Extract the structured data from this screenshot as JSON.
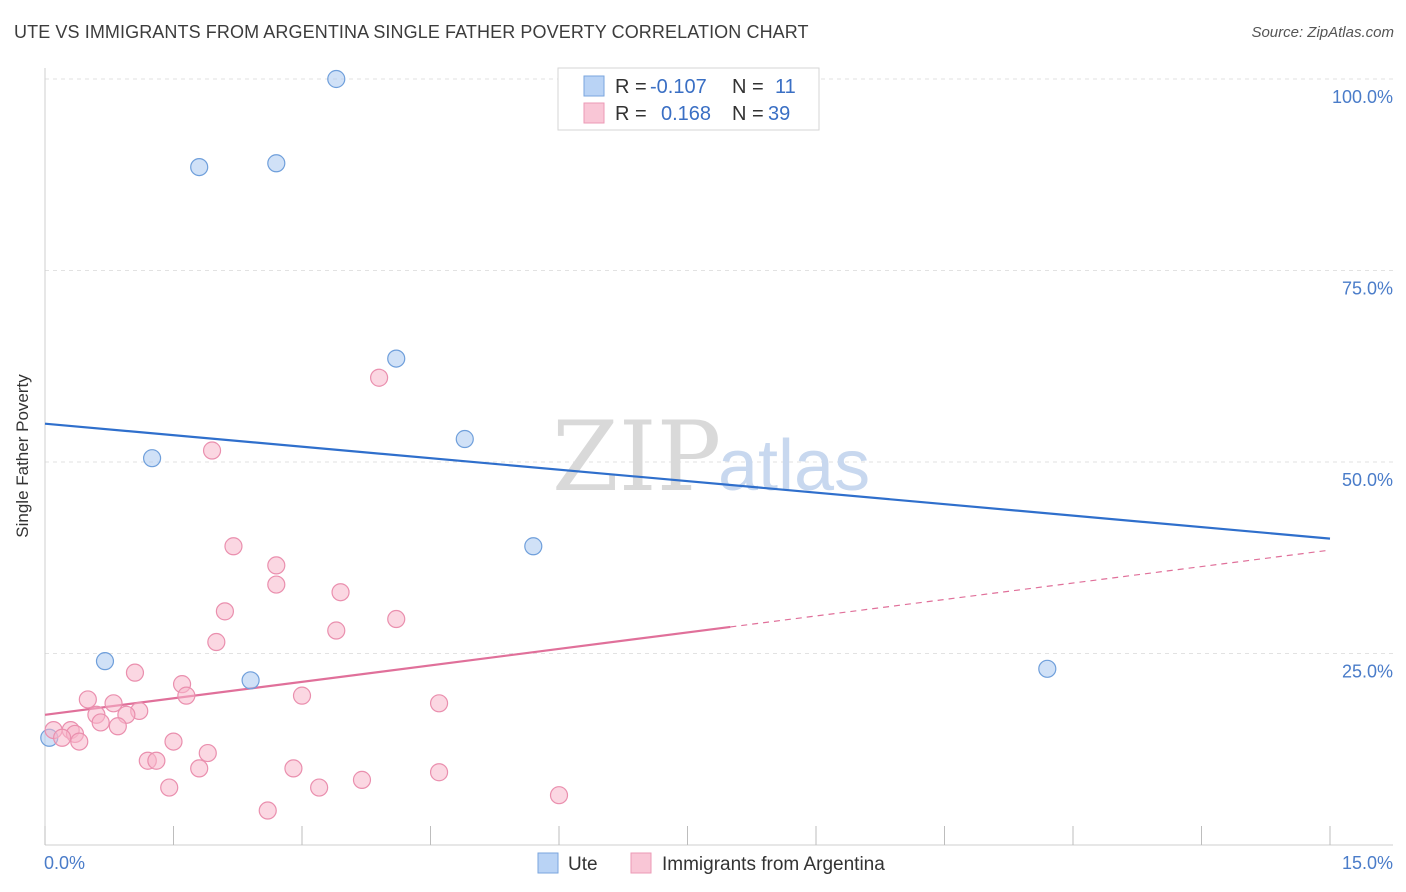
{
  "title": "UTE VS IMMIGRANTS FROM ARGENTINA SINGLE FATHER POVERTY CORRELATION CHART",
  "source": "Source: ZipAtlas.com",
  "watermark": {
    "zip": "ZIP",
    "atlas": "atlas"
  },
  "chart_data": {
    "type": "scatter",
    "ylabel": "Single Father Poverty",
    "xlim": [
      0,
      15
    ],
    "ylim": [
      0,
      100
    ],
    "x_tick_labels": [
      "0.0%",
      "15.0%"
    ],
    "y_ticks": [
      25,
      50,
      75,
      100
    ],
    "y_tick_labels": [
      "25.0%",
      "50.0%",
      "75.0%",
      "100.0%"
    ],
    "grid": true,
    "legend": {
      "placement": "top-center",
      "rows": [
        {
          "r_label": "R =",
          "r_value": "-0.107",
          "n_label": "N =",
          "n_value": "11"
        },
        {
          "r_label": "R =",
          "r_value": "0.168",
          "n_label": "N =",
          "n_value": "39"
        }
      ]
    },
    "series": [
      {
        "name": "Ute",
        "color": "#aac8f0",
        "stroke": "#6f9fdb",
        "line_color": "#2f6fcc",
        "trend": {
          "x0": 0,
          "y0": 55,
          "x1": 15,
          "y1": 40,
          "solid_until": 15
        },
        "points": [
          [
            3.4,
            100
          ],
          [
            1.8,
            88.5
          ],
          [
            2.7,
            89
          ],
          [
            4.1,
            63.5
          ],
          [
            1.25,
            50.5
          ],
          [
            4.9,
            53
          ],
          [
            5.7,
            39
          ],
          [
            0.7,
            24
          ],
          [
            2.4,
            21.5
          ],
          [
            11.7,
            23
          ],
          [
            0.05,
            14
          ]
        ]
      },
      {
        "name": "Immigrants from Argentina",
        "color": "#f7b7cb",
        "stroke": "#ea8fae",
        "line_color": "#e0709a",
        "trend": {
          "x0": 0,
          "y0": 17,
          "x1": 15,
          "y1": 38.5,
          "solid_until": 8
        },
        "points": [
          [
            3.9,
            61
          ],
          [
            1.95,
            51.5
          ],
          [
            2.2,
            39
          ],
          [
            2.7,
            36.5
          ],
          [
            2.7,
            34
          ],
          [
            3.45,
            33
          ],
          [
            2.1,
            30.5
          ],
          [
            4.1,
            29.5
          ],
          [
            3.4,
            28
          ],
          [
            2.0,
            26.5
          ],
          [
            1.05,
            22.5
          ],
          [
            1.6,
            21
          ],
          [
            1.65,
            19.5
          ],
          [
            3.0,
            19.5
          ],
          [
            4.6,
            18.5
          ],
          [
            0.5,
            19
          ],
          [
            0.8,
            18.5
          ],
          [
            1.1,
            17.5
          ],
          [
            0.6,
            17
          ],
          [
            0.95,
            17
          ],
          [
            0.65,
            16
          ],
          [
            0.85,
            15.5
          ],
          [
            0.3,
            15
          ],
          [
            0.35,
            14.5
          ],
          [
            0.1,
            15
          ],
          [
            0.2,
            14
          ],
          [
            0.4,
            13.5
          ],
          [
            1.5,
            13.5
          ],
          [
            1.9,
            12
          ],
          [
            1.2,
            11
          ],
          [
            1.3,
            11
          ],
          [
            1.8,
            10
          ],
          [
            2.9,
            10
          ],
          [
            4.6,
            9.5
          ],
          [
            3.7,
            8.5
          ],
          [
            1.45,
            7.5
          ],
          [
            3.2,
            7.5
          ],
          [
            6.0,
            6.5
          ],
          [
            2.6,
            4.5
          ]
        ]
      }
    ]
  }
}
